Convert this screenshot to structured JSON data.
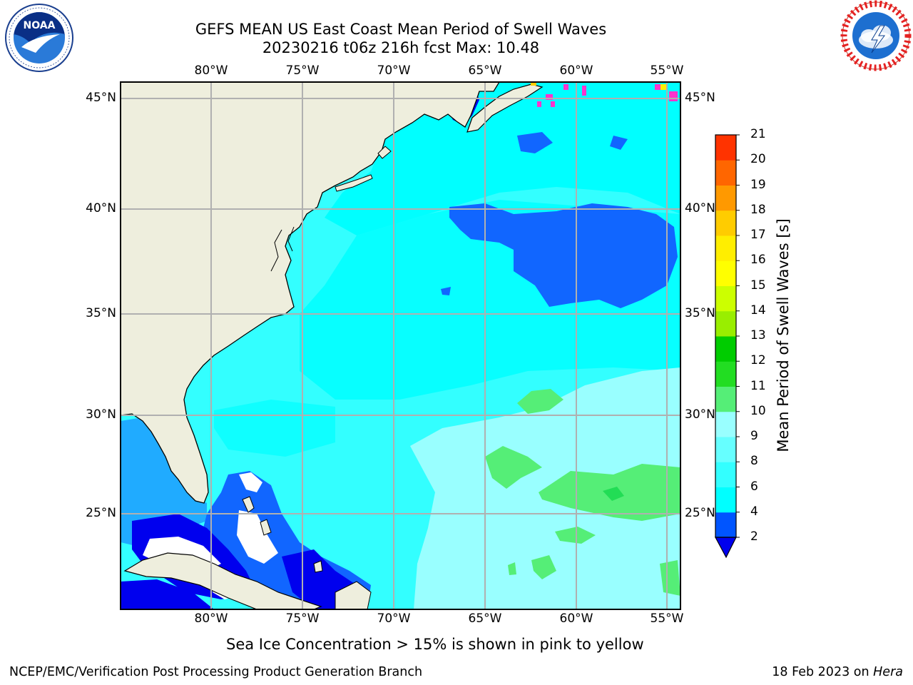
{
  "header": {
    "title_line1": "GEFS MEAN US East Coast Mean Period of Swell Waves",
    "title_line2": "20230216 t06z 216h fcst   Max: 10.48"
  },
  "logos": {
    "left": {
      "name": "NOAA",
      "ring_text": "NATIONAL OCEANIC AND ATMOSPHERIC ADMINISTRATION · U.S. DEPARTMENT OF COMMERCE"
    },
    "right": {
      "name": "NATIONAL WEATHER SERVICE"
    }
  },
  "map": {
    "longitude_labels": [
      "80°W",
      "75°W",
      "70°W",
      "65°W",
      "60°W",
      "55°W"
    ],
    "latitude_labels": [
      "45°N",
      "40°N",
      "35°N",
      "30°N",
      "25°N"
    ],
    "colors": {
      "land": "#eeeedd",
      "coast": "#000000",
      "grid": "#b0b0b0",
      "ocean_base": "#33ffff",
      "ocean_band_4_6": "#00ffff",
      "ocean_band_8_9": "#99ffff",
      "ocean_band_9_10": "#55ee77",
      "ocean_band_2_4": "#1166ff",
      "ocean_below_2": "#0000ee",
      "sea_ice": "#ff33cc"
    }
  },
  "colorbar": {
    "label": "Mean Period of Swell Waves [s]",
    "ticks": [
      "2",
      "4",
      "6",
      "8",
      "9",
      "10",
      "11",
      "12",
      "13",
      "14",
      "15",
      "16",
      "17",
      "18",
      "19",
      "20",
      "21"
    ],
    "segment_colors": [
      "#0055ff",
      "#00ffff",
      "#33ffff",
      "#66ffff",
      "#99ffff",
      "#55ee77",
      "#22dd22",
      "#00cc00",
      "#99ee00",
      "#ccff00",
      "#ffff00",
      "#ffee00",
      "#ffcc00",
      "#ff9900",
      "#ff6600",
      "#ff3300",
      "#ff0000"
    ],
    "under_color": "#0000ee"
  },
  "caption": "Sea Ice Concentration > 15% is shown in pink to yellow",
  "footer": {
    "left": "NCEP/EMC/Verification Post Processing Product Generation Branch",
    "right_date": "18 Feb 2023 on ",
    "right_machine": "Hera"
  }
}
